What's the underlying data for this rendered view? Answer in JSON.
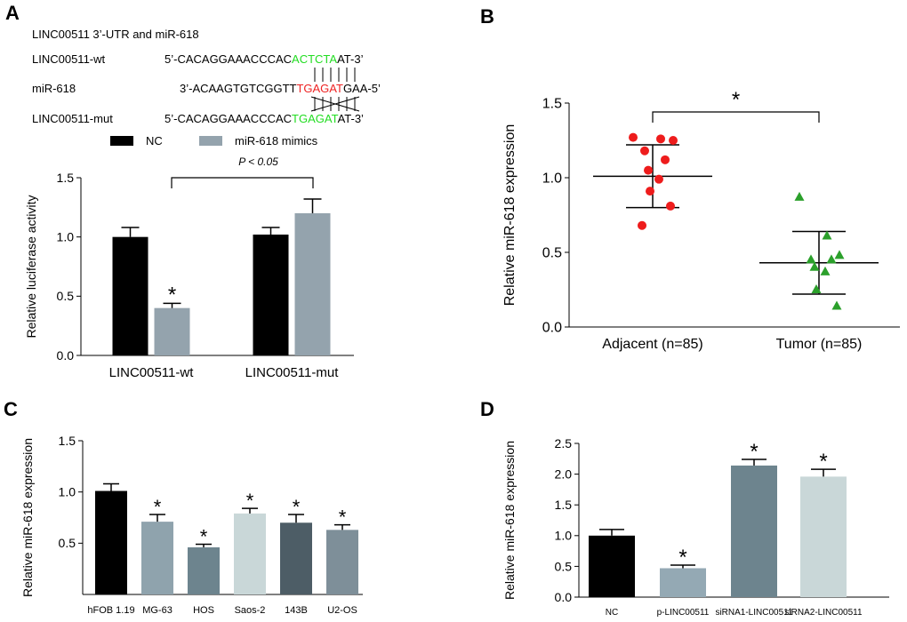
{
  "panel_labels": [
    "A",
    "B",
    "C",
    "D"
  ],
  "sequence": {
    "title": "LINC00511 3’-UTR and miR-618",
    "rows": [
      {
        "label": "LINC00511-wt",
        "prefix": "5’-CACAGGAAACCCAC",
        "highlight": "ACTCTA",
        "suffix": "AT-3’",
        "highlight_color": "#22dd22"
      },
      {
        "label": "miR-618",
        "prefix": "3’-ACAAGTGTCGGTT",
        "highlight": "TGAGAT",
        "suffix": "GAA-5’",
        "highlight_color": "#ee2222"
      },
      {
        "label": "LINC00511-mut",
        "prefix": "5’-CACAGGAAACCCAC",
        "highlight": "TGAGAT",
        "suffix": "AT-3’",
        "highlight_color": "#22dd22"
      }
    ]
  },
  "colors": {
    "nc": "#000000",
    "mimic": "#94a3ad",
    "adjacent": "#ee1c1c",
    "tumor": "#2ba02b",
    "c_bars": [
      "#000000",
      "#8fa3ad",
      "#6d848e",
      "#c9d7d8",
      "#4d5d66",
      "#7e8f99"
    ],
    "d_bars": [
      "#000000",
      "#94a9b4",
      "#6d848e",
      "#c9d7d8"
    ]
  },
  "chart_data": [
    {
      "panel": "A",
      "type": "bar",
      "categories": [
        "LINC00511-wt",
        "LINC00511-mut"
      ],
      "series": [
        {
          "name": "NC",
          "values": [
            1.0,
            1.02
          ],
          "errors": [
            0.08,
            0.06
          ]
        },
        {
          "name": "miR-618 mimics",
          "values": [
            0.4,
            1.2
          ],
          "errors": [
            0.04,
            0.12
          ]
        }
      ],
      "ylabel": "Relative luciferase activity",
      "ylim": [
        0,
        1.5
      ],
      "yticks": [
        "0.0",
        "0.5",
        "1.0",
        "1.5"
      ],
      "annotation": "P < 0.05",
      "star": "*"
    },
    {
      "panel": "B",
      "type": "scatter",
      "categories": [
        "Adjacent (n=85)",
        "Tumor (n=85)"
      ],
      "groups": [
        {
          "name": "Adjacent (n=85)",
          "values": [
            1.27,
            1.26,
            1.25,
            1.18,
            1.12,
            1.05,
            0.99,
            0.91,
            0.81,
            0.68
          ],
          "mean": 1.01,
          "sd": 0.21
        },
        {
          "name": "Tumor (n=85)",
          "values": [
            0.87,
            0.61,
            0.48,
            0.45,
            0.45,
            0.4,
            0.37,
            0.25,
            0.14
          ],
          "mean": 0.43,
          "sd": 0.21
        }
      ],
      "ylabel": "Relative miR-618 expression",
      "ylim": [
        0,
        1.5
      ],
      "yticks": [
        "0.0",
        "0.5",
        "1.0",
        "1.5"
      ],
      "star": "*"
    },
    {
      "panel": "C",
      "type": "bar",
      "categories": [
        "hFOB 1.19",
        "MG-63",
        "HOS",
        "Saos-2",
        "143B",
        "U2-OS"
      ],
      "values": [
        1.01,
        0.71,
        0.46,
        0.79,
        0.7,
        0.63
      ],
      "errors": [
        0.07,
        0.07,
        0.03,
        0.05,
        0.08,
        0.05
      ],
      "stars": [
        "",
        "*",
        "*",
        "*",
        "*",
        "*"
      ],
      "ylabel": "Relative miR-618 expression",
      "ylim": [
        0,
        1.5
      ],
      "yticks": [
        "0.5",
        "1.0",
        "1.5"
      ]
    },
    {
      "panel": "D",
      "type": "bar",
      "categories": [
        "NC",
        "p-LINC00511",
        "siRNA1-LINC00511",
        "siRNA2-LINC00511"
      ],
      "values": [
        1.0,
        0.47,
        2.14,
        1.96
      ],
      "errors": [
        0.1,
        0.05,
        0.1,
        0.12
      ],
      "stars": [
        "",
        "*",
        "*",
        "*"
      ],
      "ylabel": "Relative miR-618 expression",
      "ylim": [
        0,
        2.5
      ],
      "yticks": [
        "0.0",
        "0.5",
        "1.0",
        "1.5",
        "2.0",
        "2.5"
      ]
    }
  ]
}
